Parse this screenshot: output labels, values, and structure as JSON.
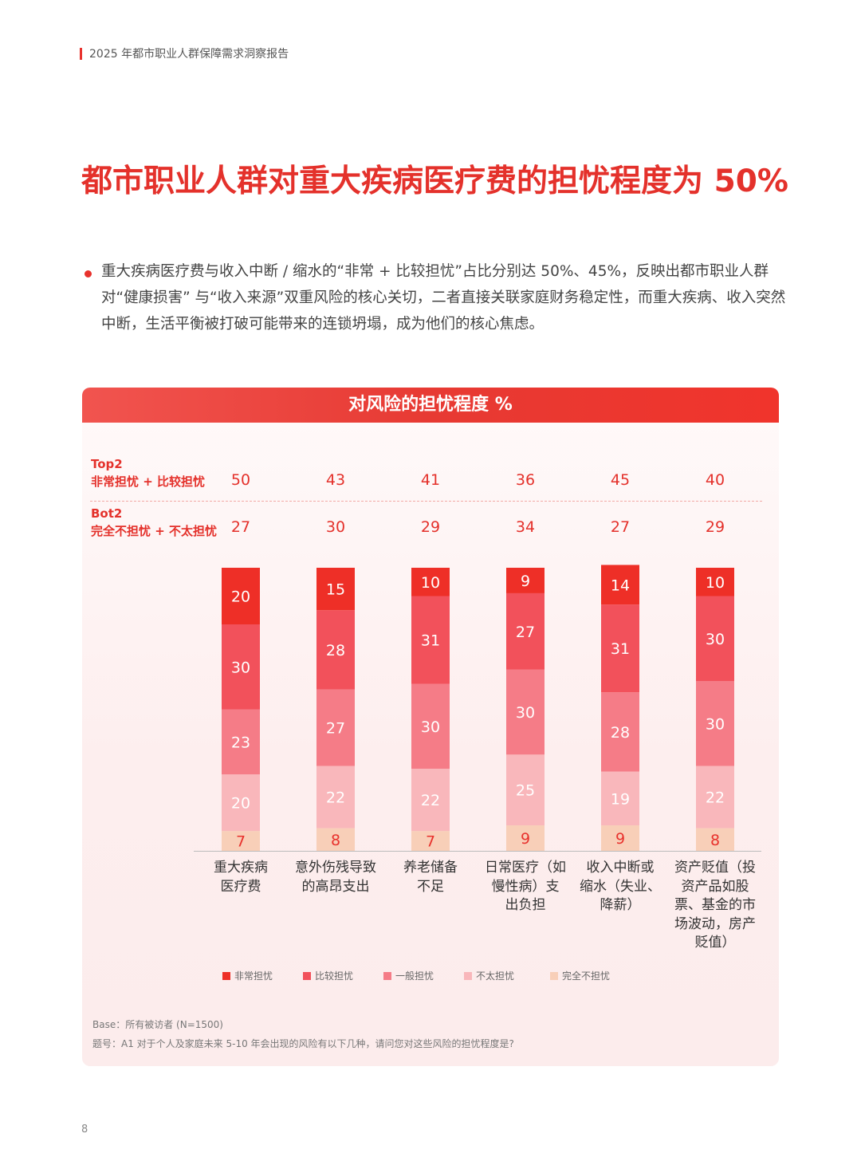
{
  "header": {
    "title": "2025 年都市职业人群保障需求洞察报告"
  },
  "main_title": "都市职业人群对重大疾病医疗费的担忧程度为 50%",
  "intro": "重大疾病医疗费与收入中断 / 缩水的“非常 + 比较担忧”占比分别达 50%、45%，反映出都市职业人群对“健康损害” 与“收入来源”双重风险的核心关切，二者直接关联家庭财务稳定性，而重大疾病、收入突然中断，生活平衡被打破可能带来的连锁坍塌，成为他们的核心焦虑。",
  "chart_data": {
    "type": "bar",
    "stacked": true,
    "title": "对风险的担忧程度 %",
    "categories": [
      "重大疾病医疗费",
      "意外伤残导致的高昂支出",
      "养老储备不足",
      "日常医疗（如慢性病）支出负担",
      "收入中断或缩水（失业、降薪）",
      "资产贬值（投资产品如股票、基金的市场波动，房产贬值）"
    ],
    "category_lines": [
      [
        "重大疾病",
        "医疗费"
      ],
      [
        "意外伤残导致",
        "的高昂支出"
      ],
      [
        "养老储备",
        "不足"
      ],
      [
        "日常医疗（如",
        "慢性病）支",
        "出负担"
      ],
      [
        "收入中断或",
        "缩水（失业、",
        "降薪）"
      ],
      [
        "资产贬值（投",
        "资产品如股",
        "票、基金的市",
        "场波动，房产",
        "贬值）"
      ]
    ],
    "series": [
      {
        "name": "非常担忧",
        "color": "#ee2f27",
        "values": [
          20,
          15,
          10,
          9,
          14,
          10
        ]
      },
      {
        "name": "比较担忧",
        "color": "#f2515b",
        "values": [
          30,
          28,
          31,
          27,
          31,
          30
        ]
      },
      {
        "name": "一般担忧",
        "color": "#f57c87",
        "values": [
          23,
          27,
          30,
          30,
          28,
          30
        ]
      },
      {
        "name": "不太担忧",
        "color": "#f9b7bb",
        "values": [
          20,
          22,
          22,
          25,
          19,
          22
        ]
      },
      {
        "name": "完全不担忧",
        "color": "#f8cfb8",
        "values": [
          7,
          8,
          7,
          9,
          9,
          8
        ]
      }
    ],
    "top2": {
      "label_line1": "Top2",
      "label_line2": "非常担忧 + 比较担忧",
      "values": [
        50,
        43,
        41,
        36,
        45,
        40
      ]
    },
    "bot2": {
      "label_line1": "Bot2",
      "label_line2": "完全不担忧 + 不太担忧",
      "values": [
        27,
        30,
        29,
        34,
        27,
        29
      ]
    },
    "legend_position": "bottom",
    "grid": false
  },
  "footnote": {
    "base": "Base：所有被访者 (N=1500)",
    "question": "题号：A1 对于个人及家庭未来 5-10 年会出现的风险有以下几种，请问您对这些风险的担忧程度是?"
  },
  "page_number": "8"
}
